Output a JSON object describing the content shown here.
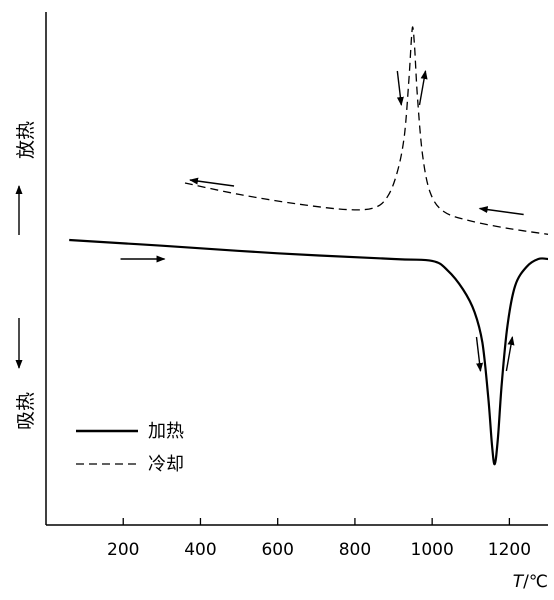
{
  "chart_data": {
    "type": "line",
    "title": "",
    "xlabel": {
      "italic": "T",
      "unit": "/℃"
    },
    "ylabel": {
      "top": "放热",
      "bottom": "吸热"
    },
    "xlim": [
      0,
      1300
    ],
    "ylim": [
      -1.5,
      1.2
    ],
    "xticks": [
      200,
      400,
      600,
      800,
      1000,
      1200
    ],
    "grid": false,
    "legend": {
      "position": "bottom-left"
    },
    "series": [
      {
        "name": "加热",
        "style": "solid",
        "color": "#000000",
        "x": [
          60,
          300,
          600,
          900,
          1000,
          1040,
          1080,
          1110,
          1130,
          1145,
          1155,
          1162,
          1170,
          1180,
          1195,
          1215,
          1245,
          1275,
          1300
        ],
        "y": [
          0,
          -0.03,
          -0.07,
          -0.1,
          -0.11,
          -0.16,
          -0.26,
          -0.38,
          -0.54,
          -0.82,
          -1.08,
          -1.18,
          -1.05,
          -0.76,
          -0.45,
          -0.24,
          -0.14,
          -0.1,
          -0.1
        ]
      },
      {
        "name": "冷却",
        "style": "dashed",
        "color": "#000000",
        "x": [
          360,
          500,
          650,
          780,
          850,
          885,
          910,
          928,
          940,
          946,
          950,
          955,
          962,
          975,
          995,
          1030,
          1100,
          1200,
          1300
        ],
        "y": [
          0.3,
          0.24,
          0.19,
          0.16,
          0.17,
          0.23,
          0.36,
          0.55,
          0.85,
          1.05,
          1.12,
          1.0,
          0.75,
          0.45,
          0.25,
          0.15,
          0.1,
          0.06,
          0.03
        ]
      }
    ],
    "direction_arrows": [
      {
        "series": "加热",
        "x": 250,
        "y": -0.1,
        "dir": "right"
      },
      {
        "series": "加热",
        "x": 1120,
        "y": -0.6,
        "dir": "down"
      },
      {
        "series": "加热",
        "x": 1200,
        "y": -0.6,
        "dir": "up"
      },
      {
        "series": "冷却",
        "x": 1180,
        "y": 0.15,
        "dir": "left"
      },
      {
        "series": "冷却",
        "x": 430,
        "y": 0.3,
        "dir": "left"
      },
      {
        "series": "冷却",
        "x": 915,
        "y": 0.8,
        "dir": "down"
      },
      {
        "series": "冷却",
        "x": 975,
        "y": 0.8,
        "dir": "up"
      }
    ]
  }
}
